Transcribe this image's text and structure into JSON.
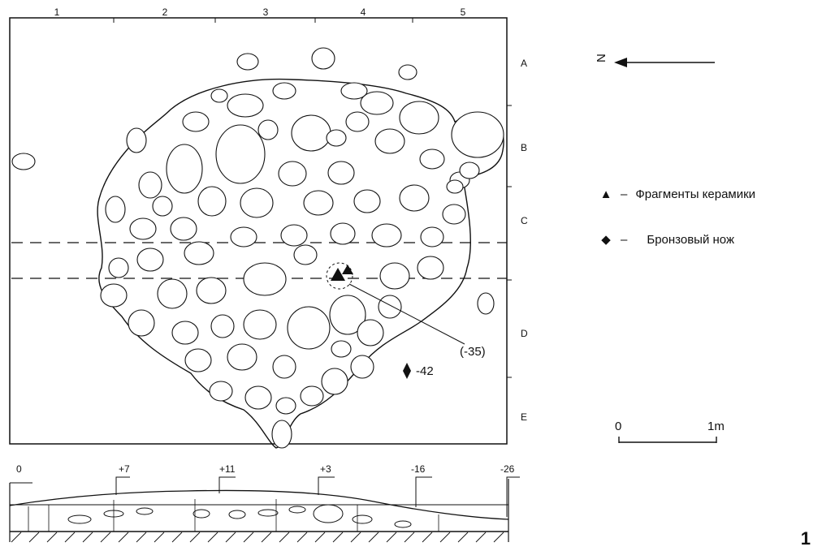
{
  "plan": {
    "column_labels": [
      "1",
      "2",
      "3",
      "4",
      "5"
    ],
    "row_labels": [
      "A",
      "B",
      "C",
      "D",
      "E"
    ],
    "depth_marks": [
      "(-35)",
      "-42"
    ]
  },
  "north_arrow": {
    "label": "N"
  },
  "legend": [
    {
      "symbol": "triangle",
      "label": "Фрагменты керамики"
    },
    {
      "symbol": "diamond",
      "label": "Бронзовый нож"
    }
  ],
  "scale_bar": {
    "start_label": "0",
    "end_label": "1m"
  },
  "section": {
    "elevations": [
      "0",
      "+7",
      "+11",
      "+3",
      "-16",
      "-26"
    ]
  },
  "figure_number": "1",
  "colors": {
    "ink": "#111111",
    "paper": "#ffffff"
  }
}
